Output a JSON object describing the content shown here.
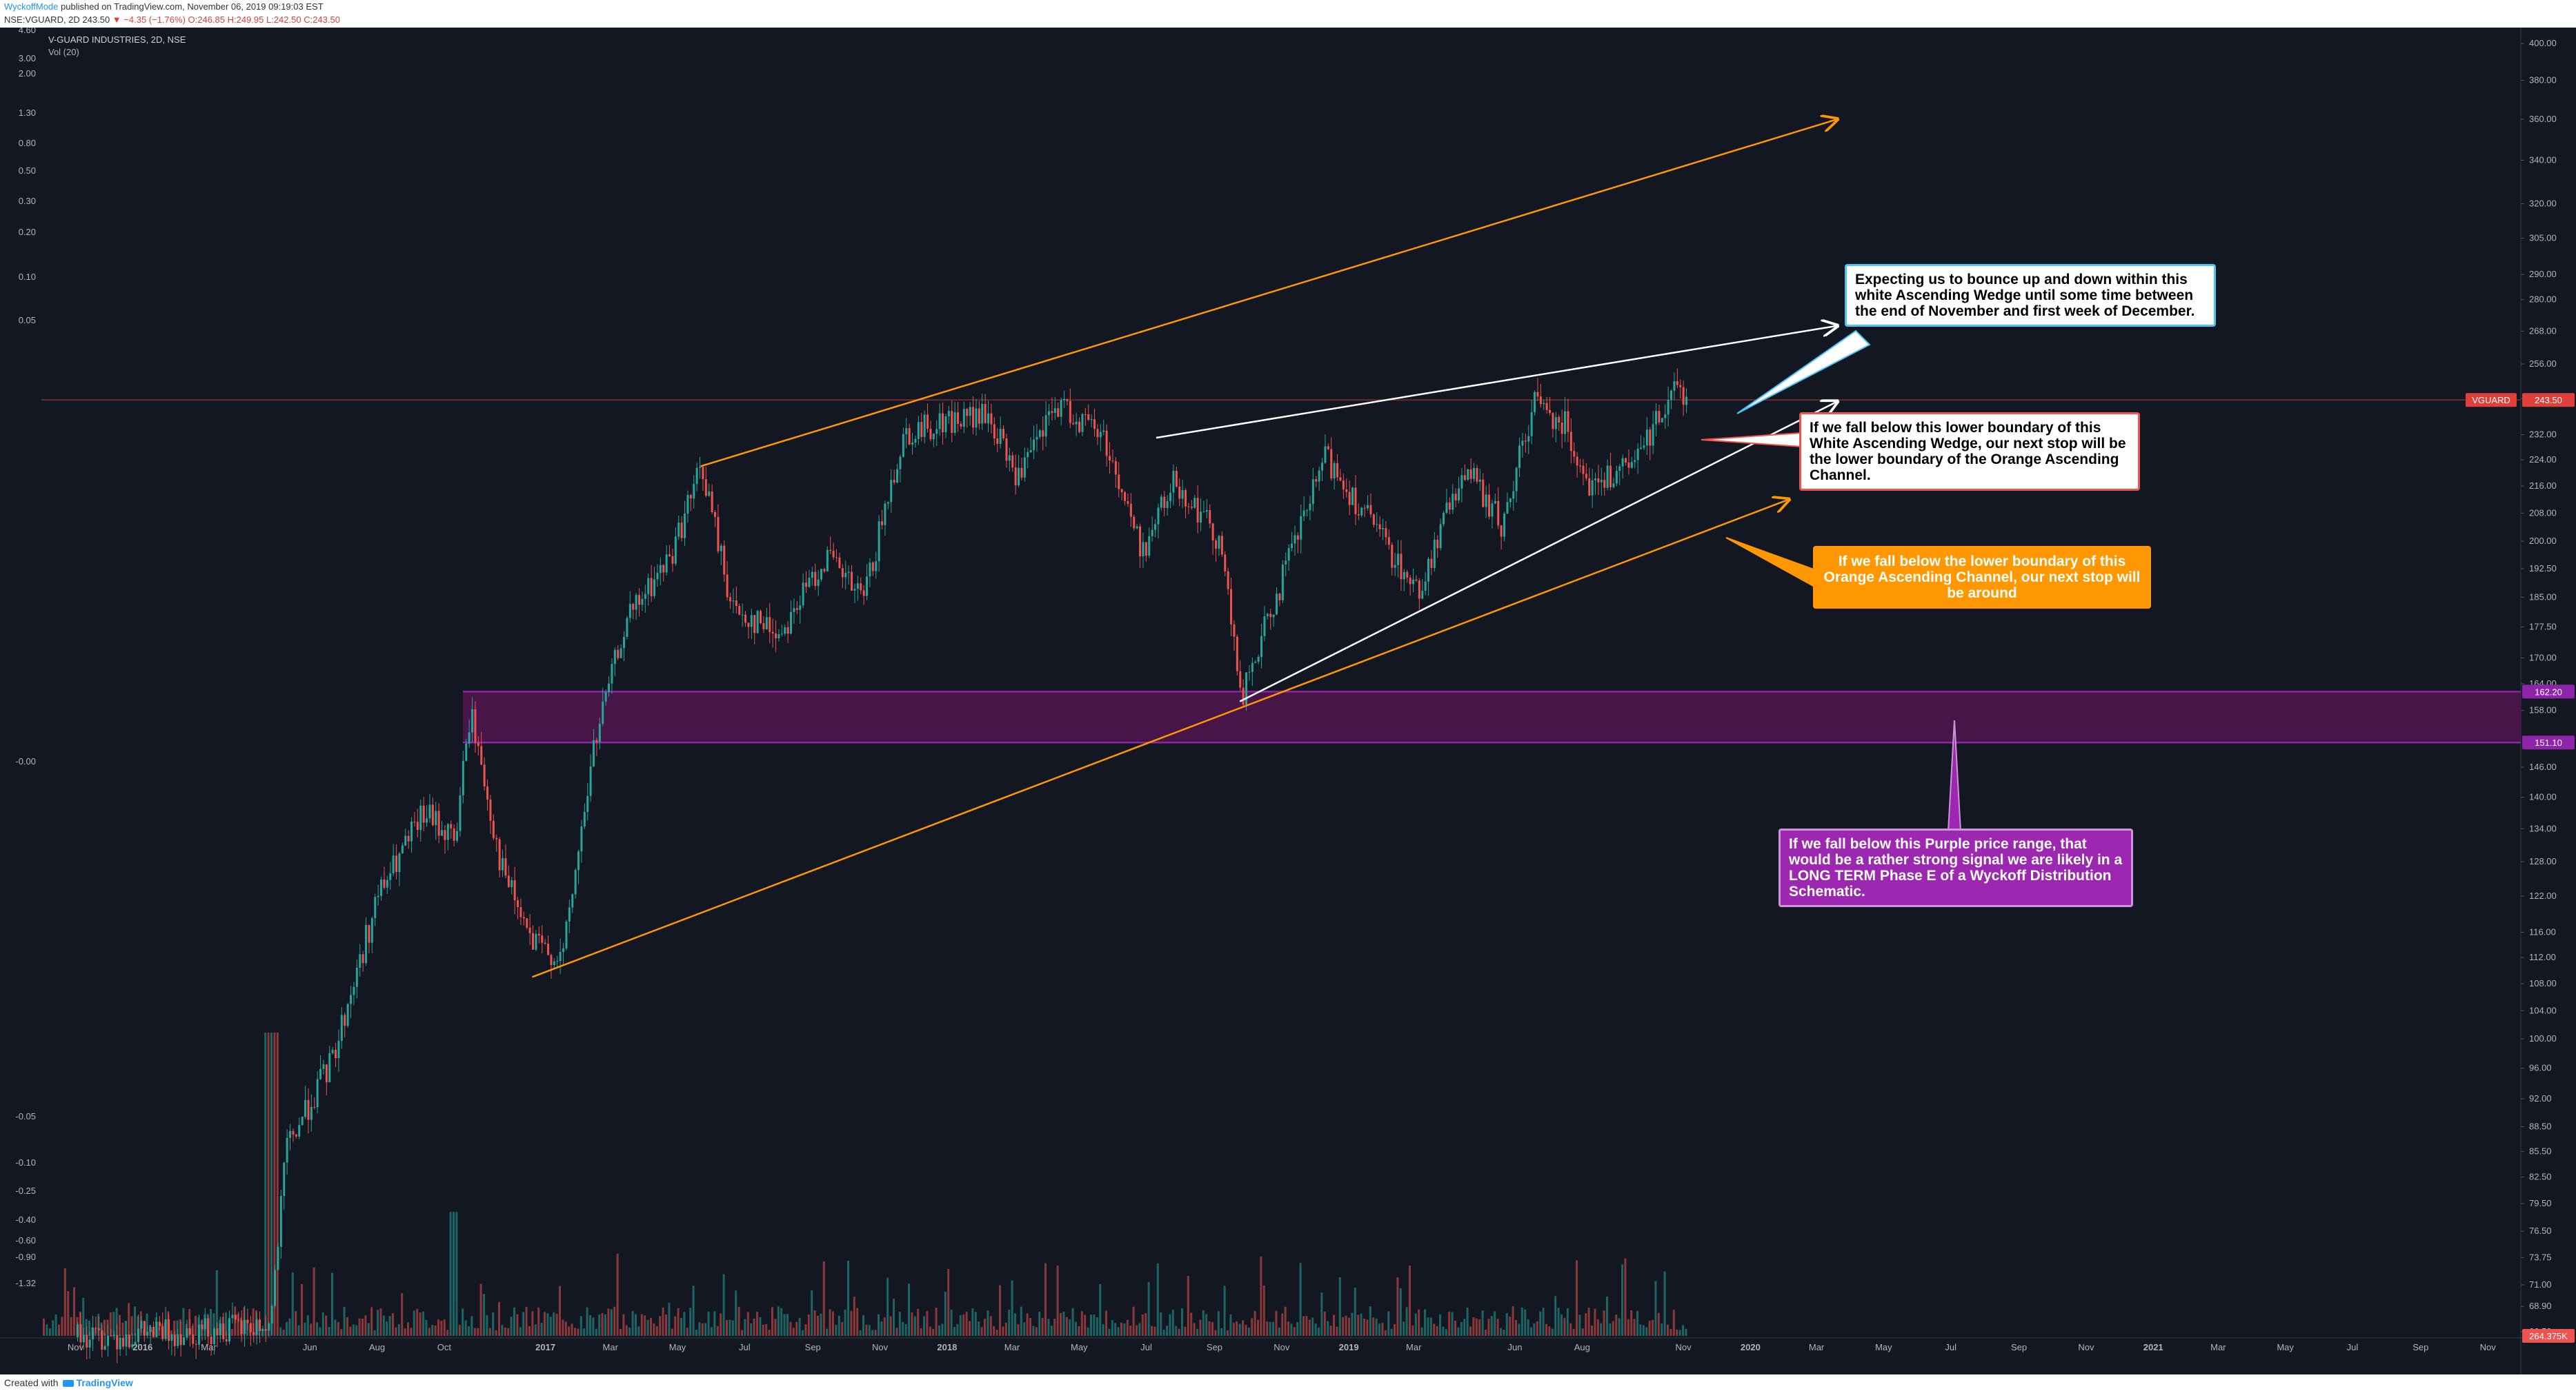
{
  "header": {
    "author": "WyckoffMode",
    "published_text": " published on TradingView.com, November 06, 2019 09:19:03 EST",
    "symbol_line": "NSE:VGUARD, 2D 243.50 ",
    "change_text": "▼ −4.35 (−1.76%)",
    "ohlc_text": " O:246.85 H:249.95 L:242.50 C:243.50"
  },
  "footer": {
    "created_with": "Created with",
    "brand": "TradingView"
  },
  "accent_colors": {
    "background": "#131722",
    "orange_channel": "#ff9800",
    "white_wedge": "#ffffff",
    "purple_zone": "#8e24aa",
    "price_tag": "#e0403a",
    "up_candle": "#26a69a",
    "down_candle": "#ef5350"
  },
  "chart_data": {
    "type": "candlestick",
    "title": "V-GUARD INDUSTRIES, 2D, NSE",
    "indicator_label": "Vol (20)",
    "symbol": "VGUARD",
    "last_price": "243.50",
    "y_scale": "log",
    "ylim": [
      66,
      402
    ],
    "right_axis_ticks": [
      "400.00",
      "380.00",
      "360.00",
      "340.00",
      "320.00",
      "305.00",
      "290.00",
      "280.00",
      "268.00",
      "256.00",
      "244.00",
      "232.00",
      "224.00",
      "216.00",
      "208.00",
      "200.00",
      "192.50",
      "185.00",
      "177.50",
      "170.00",
      "164.00",
      "158.00",
      "146.00",
      "140.00",
      "134.00",
      "128.00",
      "122.00",
      "116.00",
      "112.00",
      "108.00",
      "104.00",
      "100.00",
      "96.00",
      "92.00",
      "88.50",
      "85.50",
      "82.50",
      "79.50",
      "76.50",
      "73.75",
      "71.00",
      "68.90",
      "66.50"
    ],
    "left_axis_ticks": [
      "4.60",
      "3.00",
      "2.00",
      "1.30",
      "0.80",
      "0.50",
      "0.30",
      "0.20",
      "0.10",
      "0.05",
      "-0.00",
      "-0.05",
      "-0.10",
      "-0.25",
      "-0.40",
      "-0.60",
      "-0.90",
      "-1.32"
    ],
    "x_tick_labels": [
      "Nov",
      "2016",
      "Mar",
      "Jun",
      "Aug",
      "Oct",
      "2017",
      "Mar",
      "May",
      "Jul",
      "Sep",
      "Nov",
      "2018",
      "Mar",
      "May",
      "Jul",
      "Sep",
      "Nov",
      "2019",
      "Mar",
      "Jun",
      "Aug",
      "Nov",
      "2020",
      "Mar",
      "May",
      "Jul",
      "Sep",
      "Nov",
      "2021",
      "Mar",
      "May",
      "Jul",
      "Sep",
      "Nov"
    ],
    "x_bold_labels": [
      "2016",
      "2017",
      "2018",
      "2019",
      "2020",
      "2021"
    ],
    "price_labels": [
      {
        "text": "VGUARD",
        "kind": "symbol"
      },
      {
        "text": "243.50",
        "kind": "last",
        "price": 243.5
      },
      {
        "text": "162.20",
        "kind": "zone_top",
        "price": 162.2
      },
      {
        "text": "151.10",
        "kind": "zone_bottom",
        "price": 151.1
      },
      {
        "text": "264.375K",
        "kind": "volume"
      }
    ],
    "purple_zone": {
      "top": 162.2,
      "bottom": 151.1
    },
    "price_path_waypoints": [
      [
        "2015-11-02",
        66
      ],
      [
        "2016-04-25",
        67
      ],
      [
        "2016-05-10",
        86
      ],
      [
        "2016-06-20",
        97
      ],
      [
        "2016-08-01",
        122
      ],
      [
        "2016-09-12",
        137
      ],
      [
        "2016-10-10",
        132
      ],
      [
        "2016-10-24",
        158
      ],
      [
        "2016-11-21",
        127
      ],
      [
        "2016-12-19",
        114
      ],
      [
        "2017-01-16",
        112
      ],
      [
        "2017-02-13",
        150
      ],
      [
        "2017-03-13",
        178
      ],
      [
        "2017-04-24",
        196
      ],
      [
        "2017-05-22",
        222
      ],
      [
        "2017-06-19",
        182
      ],
      [
        "2017-08-01",
        176
      ],
      [
        "2017-09-12",
        196
      ],
      [
        "2017-10-16",
        184
      ],
      [
        "2017-11-21",
        232
      ],
      [
        "2017-12-26",
        236
      ],
      [
        "2018-02-06",
        238
      ],
      [
        "2018-03-06",
        218
      ],
      [
        "2018-04-10",
        242
      ],
      [
        "2018-05-22",
        232
      ],
      [
        "2018-06-26",
        197
      ],
      [
        "2018-07-26",
        218
      ],
      [
        "2018-09-06",
        200
      ],
      [
        "2018-09-24",
        160
      ],
      [
        "2018-10-22",
        182
      ],
      [
        "2018-12-10",
        225
      ],
      [
        "2019-01-21",
        205
      ],
      [
        "2019-03-04",
        186
      ],
      [
        "2019-04-15",
        222
      ],
      [
        "2019-05-20",
        204
      ],
      [
        "2019-06-17",
        243
      ],
      [
        "2019-07-15",
        236
      ],
      [
        "2019-08-08",
        216
      ],
      [
        "2019-09-16",
        222
      ],
      [
        "2019-10-21",
        248
      ],
      [
        "2019-11-05",
        243.5
      ]
    ],
    "trend_lines": [
      {
        "name": "orange-channel-upper",
        "color": "#ff9800",
        "from": [
          "2017-05-22",
          222
        ],
        "to": [
          "2020-03-20",
          360
        ],
        "arrow": true
      },
      {
        "name": "orange-channel-lower",
        "color": "#ff9800",
        "from": [
          "2016-12-20",
          109
        ],
        "to": [
          "2020-02-05",
          212
        ],
        "arrow": true
      },
      {
        "name": "white-wedge-upper",
        "color": "#ffffff",
        "from": [
          "2018-07-10",
          231
        ],
        "to": [
          "2020-03-20",
          270
        ],
        "arrow": true
      },
      {
        "name": "white-wedge-lower",
        "color": "#ffffff",
        "from": [
          "2018-09-24",
          160
        ],
        "to": [
          "2020-03-20",
          243
        ],
        "arrow": true
      }
    ],
    "annotations": [
      {
        "name": "callout-wedge-bounce",
        "text": "Expecting us to bounce up and down within this white Ascending Wedge until some time between the end of November and first week of December.",
        "bg": "#ffffff",
        "border": "#4fc3f7",
        "color": "#000000"
      },
      {
        "name": "callout-white-lower",
        "text": "If we fall below this lower boundary of this White Ascending Wedge, our next stop will be the lower boundary of the Orange Ascending Channel.",
        "bg": "#ffffff",
        "border": "#ef5350",
        "color": "#000000"
      },
      {
        "name": "callout-orange-lower",
        "text": "If we fall below the lower boundary of this Orange Ascending Channel, our next stop will be around",
        "bg": "#ff9800",
        "border": "#ff9800",
        "color": "#ffffff"
      },
      {
        "name": "callout-purple-zone",
        "text": "If we fall below this Purple price range, that would be a rather strong signal we are likely in a LONG TERM Phase E of a Wyckoff Distribution Schematic.",
        "bg": "#9c27b0",
        "border": "#ce93d8",
        "color": "#ffffff"
      }
    ]
  }
}
